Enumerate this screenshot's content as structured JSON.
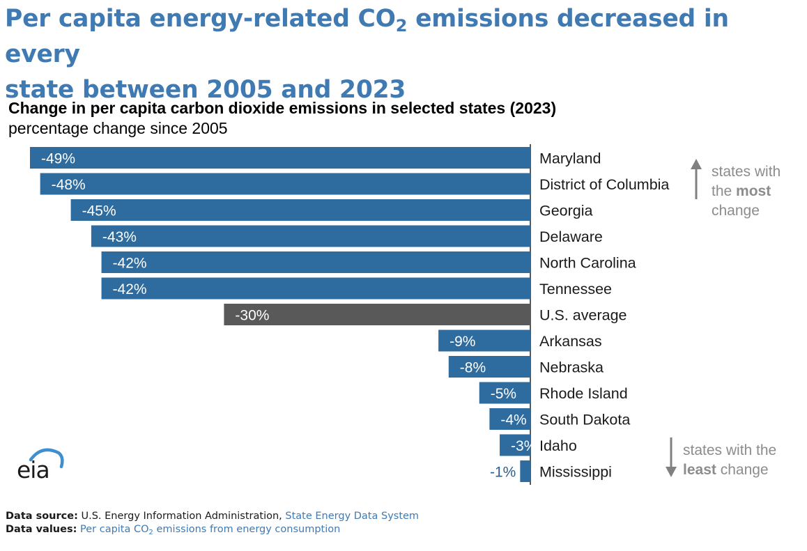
{
  "headline": {
    "line1_before": "Per capita energy-related CO",
    "line1_sub": "2",
    "line1_after": " emissions decreased in every",
    "line2": "state between 2005 and 2023"
  },
  "chart_data": {
    "type": "bar",
    "orientation": "horizontal",
    "title": "Change in per capita carbon dioxide emissions in selected states (2023)",
    "subtitle": "percentage change since 2005",
    "unit": "%",
    "categories": [
      "Maryland",
      "District of Columbia",
      "Georgia",
      "Delaware",
      "North Carolina",
      "Tennessee",
      "U.S. average",
      "Arkansas",
      "Nebraska",
      "Rhode Island",
      "South Dakota",
      "Idaho",
      "Mississippi"
    ],
    "values": [
      -49,
      -48,
      -45,
      -43,
      -42,
      -42,
      -30,
      -9,
      -8,
      -5,
      -4,
      -3,
      -1
    ],
    "labels": [
      "-49%",
      "-48%",
      "-45%",
      "-43%",
      "-42%",
      "-42%",
      "-30%",
      "-9%",
      "-8%",
      "-5%",
      "-4%",
      "-3%",
      "-1%"
    ],
    "highlight_category": "U.S. average",
    "xlim": [
      -49,
      0
    ],
    "colors": {
      "bar": "#2e6b9e",
      "highlight": "#595959",
      "label_inside": "#ffffff",
      "label_outside": "#2e5f8c",
      "annotation": "#8c8c8c",
      "arrow": "#808080"
    },
    "annotations": {
      "most": {
        "line1": "states with",
        "line2_before": "the ",
        "line2_bold": "most",
        "line3": "change"
      },
      "least": {
        "line1": "states with the",
        "line2_bold": "least",
        "line2_after": " change"
      }
    }
  },
  "logo": {
    "text": "eia"
  },
  "footer": {
    "source_label": "Data source:",
    "source_org": "U.S. Energy Information Administration,",
    "source_link": "State Energy Data System",
    "values_label": "Data values:",
    "values_before": "Per capita CO",
    "values_sub": "2",
    "values_after": " emissions from energy consumption"
  }
}
